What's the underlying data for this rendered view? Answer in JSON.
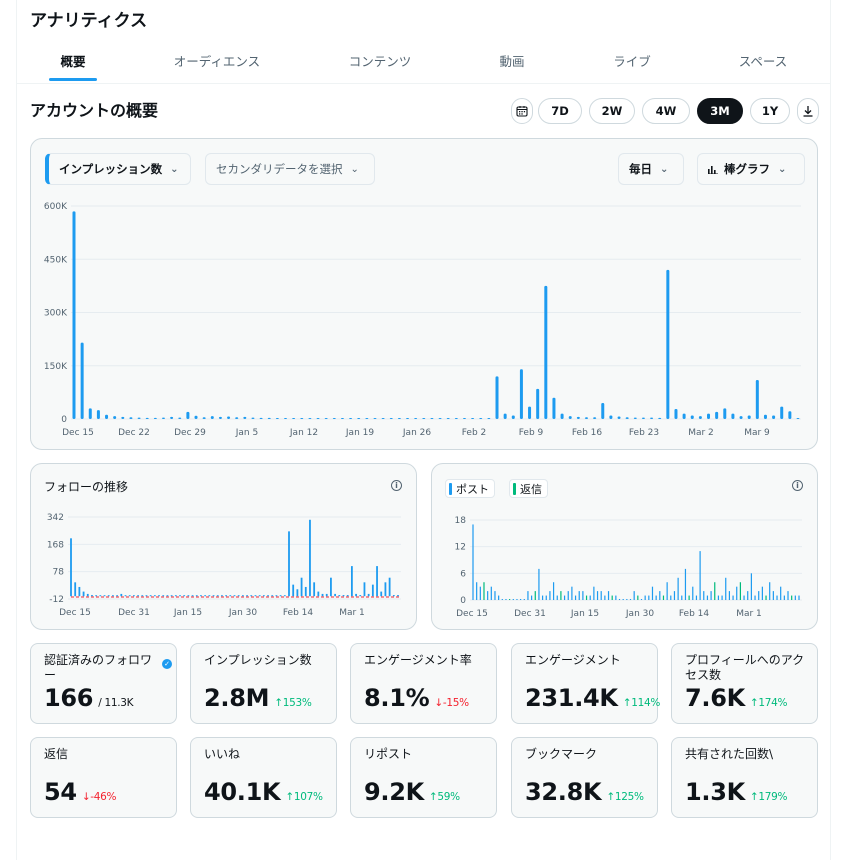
{
  "header": {
    "title": "アナリティクス"
  },
  "tabs": [
    {
      "label": "概要"
    },
    {
      "label": "オーディエンス"
    },
    {
      "label": "コンテンツ"
    },
    {
      "label": "動画"
    },
    {
      "label": "ライブ"
    },
    {
      "label": "スペース"
    }
  ],
  "overview": {
    "title": "アカウントの概要",
    "ranges": [
      "7D",
      "2W",
      "4W",
      "3M",
      "1Y"
    ],
    "active_range": "3M"
  },
  "main_chart": {
    "metric_dropdown": "インプレッション数",
    "secondary_dropdown": "セカンダリデータを選択",
    "interval_dropdown": "毎日",
    "chart_type_dropdown": "棒グラフ",
    "accent": "#1d9bf0"
  },
  "follow_chart": {
    "title": "フォローの推移"
  },
  "posts_chart": {
    "legend_posts": "ポスト",
    "legend_replies": "返信"
  },
  "stats": [
    {
      "label": "認証済みのフォロワー",
      "value": "166",
      "sub": "/ 11.3K",
      "change": "",
      "dir": ""
    },
    {
      "label": "インプレッション数",
      "value": "2.8M",
      "change": "153%",
      "dir": "up"
    },
    {
      "label": "エンゲージメント率",
      "value": "8.1%",
      "change": "-15%",
      "dir": "down"
    },
    {
      "label": "エンゲージメント",
      "value": "231.4K",
      "change": "114%",
      "dir": "up"
    },
    {
      "label": "プロフィールへのアクセス数",
      "value": "7.6K",
      "change": "174%",
      "dir": "up"
    },
    {
      "label": "返信",
      "value": "54",
      "change": "-46%",
      "dir": "down"
    },
    {
      "label": "いいね",
      "value": "40.1K",
      "change": "107%",
      "dir": "up"
    },
    {
      "label": "リポスト",
      "value": "9.2K",
      "change": "59%",
      "dir": "up"
    },
    {
      "label": "ブックマーク",
      "value": "32.8K",
      "change": "125%",
      "dir": "up"
    },
    {
      "label": "共有された回数\\",
      "value": "1.3K",
      "change": "179%",
      "dir": "up"
    }
  ],
  "chart_data": [
    {
      "type": "bar",
      "series": [
        {
          "name": "インプレッション数"
        }
      ],
      "y_ticks": [
        "600K",
        "450K",
        "300K",
        "150K",
        "0"
      ],
      "x_ticks": [
        "Dec 15",
        "Dec 22",
        "Dec 29",
        "Jan 5",
        "Jan 12",
        "Jan 19",
        "Jan 26",
        "Feb 2",
        "Feb 9",
        "Feb 16",
        "Feb 23",
        "Mar 2",
        "Mar 9"
      ],
      "ylim": [
        0,
        600000
      ],
      "values": [
        585000,
        215000,
        30000,
        25000,
        12000,
        8000,
        6000,
        5000,
        4000,
        3000,
        3000,
        4000,
        6000,
        4000,
        20000,
        9000,
        5000,
        8000,
        6000,
        7000,
        5000,
        6000,
        4000,
        3000,
        3000,
        2000,
        2000,
        2000,
        1500,
        1500,
        1500,
        1500,
        1500,
        1500,
        1500,
        1000,
        1000,
        1000,
        1000,
        1000,
        1000,
        1000,
        1000,
        1000,
        1000,
        1000,
        1000,
        1000,
        1000,
        1000,
        1000,
        1000,
        120000,
        15000,
        10000,
        140000,
        35000,
        85000,
        375000,
        60000,
        15000,
        8000,
        6000,
        5000,
        5000,
        45000,
        10000,
        7000,
        5000,
        4000,
        4000,
        4000,
        3000,
        420000,
        28000,
        15000,
        10000,
        8000,
        15000,
        20000,
        30000,
        15000,
        8000,
        10000,
        110000,
        12000,
        10000,
        35000,
        22000,
        2000
      ]
    },
    {
      "type": "bar",
      "series": [
        {
          "name": "フォロー"
        }
      ],
      "y_ticks": [
        "342",
        "168",
        "78",
        "-12"
      ],
      "x_ticks": [
        "Dec 15",
        "Dec 31",
        "Jan 15",
        "Jan 30",
        "Feb 14",
        "Mar 1"
      ],
      "ylim": [
        -12,
        342
      ],
      "values": [
        250,
        60,
        40,
        20,
        10,
        5,
        3,
        3,
        3,
        3,
        3,
        3,
        10,
        3,
        3,
        3,
        3,
        3,
        3,
        3,
        3,
        3,
        3,
        3,
        3,
        3,
        3,
        3,
        3,
        3,
        3,
        3,
        3,
        3,
        3,
        3,
        3,
        3,
        3,
        3,
        3,
        3,
        3,
        3,
        3,
        3,
        3,
        3,
        3,
        3,
        3,
        3,
        280,
        50,
        30,
        80,
        40,
        330,
        60,
        20,
        10,
        10,
        80,
        10,
        5,
        5,
        5,
        130,
        10,
        5,
        60,
        10,
        50,
        130,
        20,
        60,
        80,
        5,
        5
      ]
    },
    {
      "type": "bar",
      "series": [
        {
          "name": "ポスト"
        },
        {
          "name": "返信"
        }
      ],
      "y_ticks": [
        "18",
        "12",
        "6",
        "0"
      ],
      "x_ticks": [
        "Dec 15",
        "Dec 31",
        "Jan 15",
        "Jan 30",
        "Feb 14",
        "Mar 1"
      ],
      "ylim": [
        0,
        18
      ],
      "values": [
        17,
        4,
        3,
        4,
        2,
        3,
        2,
        1,
        0,
        0,
        0,
        0,
        0,
        0,
        0,
        2,
        1,
        2,
        7,
        1,
        1,
        2,
        4,
        1,
        2,
        1,
        2,
        3,
        1,
        2,
        2,
        1,
        1,
        3,
        2,
        2,
        1,
        2,
        1,
        1,
        0,
        0,
        0,
        0,
        2,
        1,
        0,
        1,
        1,
        3,
        1,
        2,
        1,
        4,
        1,
        2,
        5,
        1,
        7,
        1,
        3,
        1,
        11,
        2,
        1,
        2,
        4,
        1,
        1,
        5,
        2,
        1,
        3,
        4,
        1,
        2,
        6,
        1,
        2,
        3,
        1,
        4,
        2,
        1,
        3,
        1,
        2,
        1,
        1,
        1
      ]
    }
  ]
}
